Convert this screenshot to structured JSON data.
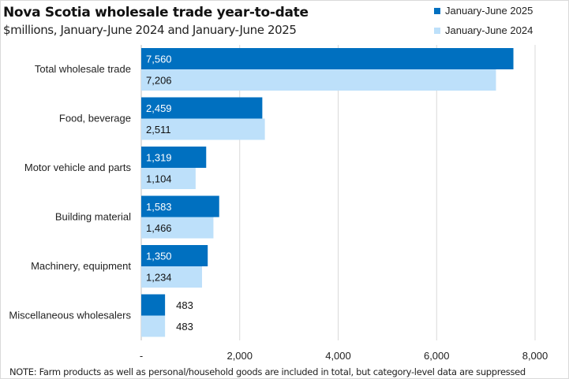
{
  "chart_data": {
    "type": "bar",
    "orientation": "horizontal",
    "title": "Nova Scotia wholesale trade year-to-date",
    "subtitle": "$millions, January-June 2024 and January-June 2025",
    "categories": [
      "Total wholesale trade",
      "Food, beverage",
      "Motor vehicle and parts",
      "Building material",
      "Machinery, equipment",
      "Miscellaneous wholesalers"
    ],
    "series": [
      {
        "name": "January-June 2025",
        "color": "#0070c0",
        "label_color": "#ffffff",
        "values": [
          7560,
          2459,
          1319,
          1583,
          1350,
          483
        ],
        "labels": [
          "7,560",
          "2,459",
          "1,319",
          "1,583",
          "1,350",
          "483"
        ]
      },
      {
        "name": "January-June 2024",
        "color": "#bde0fa",
        "label_color": "#111111",
        "values": [
          7206,
          2511,
          1104,
          1466,
          1234,
          483
        ],
        "labels": [
          "7,206",
          "2,511",
          "1,104",
          "1,466",
          "1,234",
          "483"
        ]
      }
    ],
    "xlim": [
      0,
      8000
    ],
    "xticks": [
      0,
      2000,
      4000,
      6000,
      8000
    ],
    "xtick_labels": [
      "-",
      "2,000",
      "4,000",
      "6,000",
      "8,000"
    ],
    "xlabel": "",
    "ylabel": "",
    "grid": true,
    "legend_position": "top-right",
    "note": "NOTE:  Farm products as well as personal/household goods are included in total, but category-level  data are suppressed"
  }
}
